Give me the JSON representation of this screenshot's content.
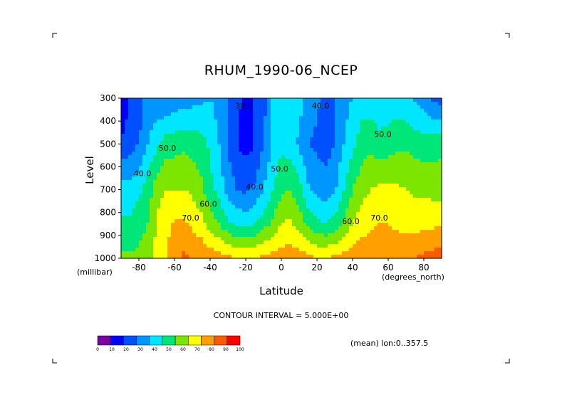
{
  "chart_data": {
    "type": "heatmap",
    "title": "RHUM_1990-06_NCEP",
    "xlabel": "Latitude",
    "x_unit": "(degrees_north)",
    "ylabel": "Level",
    "y_unit": "(millibar)",
    "xlim": [
      -90,
      90
    ],
    "ylim": [
      1000,
      300
    ],
    "x_ticks": [
      -80,
      -60,
      -40,
      -20,
      0,
      20,
      40,
      60,
      80
    ],
    "x_tick_labels": [
      "-80",
      "-60",
      "-40",
      "-20",
      "0",
      "20",
      "40",
      "60",
      "80"
    ],
    "y_ticks": [
      300,
      400,
      500,
      600,
      700,
      800,
      900,
      1000
    ],
    "y_tick_labels": [
      "300",
      "400",
      "500",
      "600",
      "700",
      "800",
      "900",
      "1000"
    ],
    "contour_interval_text": "CONTOUR INTERVAL = 5.000E+00",
    "annotation": "(mean) lon:0..357.5",
    "colorbar": {
      "labels": [
        "0",
        "10",
        "20",
        "30",
        "40",
        "50",
        "60",
        "70",
        "80",
        "90",
        "100"
      ],
      "colors": [
        "#7a00a0",
        "#0000ff",
        "#0050ff",
        "#0096ff",
        "#00e6ff",
        "#00e678",
        "#7ce600",
        "#ffff00",
        "#ffa000",
        "#ff5a00",
        "#ff0000"
      ]
    },
    "contour_labels": [
      {
        "text": "30.0",
        "x": -21,
        "y": 345
      },
      {
        "text": "40.0",
        "x": 22,
        "y": 345
      },
      {
        "text": "50.0",
        "x": 57,
        "y": 470
      },
      {
        "text": "50.0",
        "x": -64,
        "y": 530
      },
      {
        "text": "40.0",
        "x": -78,
        "y": 640
      },
      {
        "text": "50.0",
        "x": -1,
        "y": 620
      },
      {
        "text": "40.0",
        "x": -15,
        "y": 700
      },
      {
        "text": "60.0",
        "x": -41,
        "y": 775
      },
      {
        "text": "70.0",
        "x": -51,
        "y": 835
      },
      {
        "text": "60.0",
        "x": 39,
        "y": 850
      },
      {
        "text": "70.0",
        "x": 55,
        "y": 835
      }
    ],
    "profiles": {
      "lat": [
        -90,
        -85,
        -80,
        -75,
        -70,
        -65,
        -60,
        -55,
        -50,
        -45,
        -40,
        -35,
        -30,
        -25,
        -20,
        -15,
        -10,
        -5,
        0,
        5,
        10,
        15,
        20,
        25,
        30,
        35,
        40,
        45,
        50,
        55,
        60,
        65,
        70,
        75,
        80,
        85,
        90
      ],
      "p300": [
        8,
        22,
        24,
        34,
        32,
        30,
        33,
        34,
        36,
        38,
        40,
        36,
        30,
        22,
        18,
        20,
        26,
        40,
        50,
        48,
        44,
        36,
        32,
        26,
        30,
        36,
        40,
        46,
        44,
        42,
        43,
        44,
        42,
        38,
        34,
        28,
        26
      ],
      "p500": [
        22,
        26,
        30,
        40,
        48,
        55,
        56,
        58,
        56,
        54,
        48,
        40,
        28,
        20,
        16,
        20,
        30,
        40,
        48,
        45,
        38,
        30,
        28,
        26,
        30,
        40,
        48,
        55,
        57,
        54,
        55,
        58,
        58,
        56,
        55,
        56,
        57
      ],
      "p700": [
        44,
        44,
        48,
        54,
        66,
        70,
        70,
        70,
        68,
        62,
        54,
        46,
        36,
        30,
        28,
        32,
        40,
        50,
        58,
        60,
        54,
        42,
        36,
        34,
        38,
        50,
        60,
        66,
        70,
        72,
        72,
        72,
        70,
        68,
        68,
        66,
        66
      ],
      "p850": [
        52,
        52,
        56,
        60,
        72,
        76,
        82,
        82,
        78,
        74,
        66,
        60,
        52,
        48,
        46,
        50,
        56,
        62,
        70,
        72,
        66,
        58,
        52,
        50,
        54,
        62,
        70,
        76,
        78,
        80,
        80,
        78,
        76,
        76,
        78,
        78,
        80
      ],
      "p1000": [
        62,
        62,
        62,
        66,
        72,
        80,
        88,
        92,
        90,
        88,
        86,
        84,
        82,
        80,
        79,
        80,
        82,
        84,
        85,
        86,
        85,
        83,
        80,
        80,
        82,
        84,
        86,
        86,
        86,
        87,
        87,
        88,
        90,
        90,
        92,
        94,
        94
      ]
    }
  }
}
